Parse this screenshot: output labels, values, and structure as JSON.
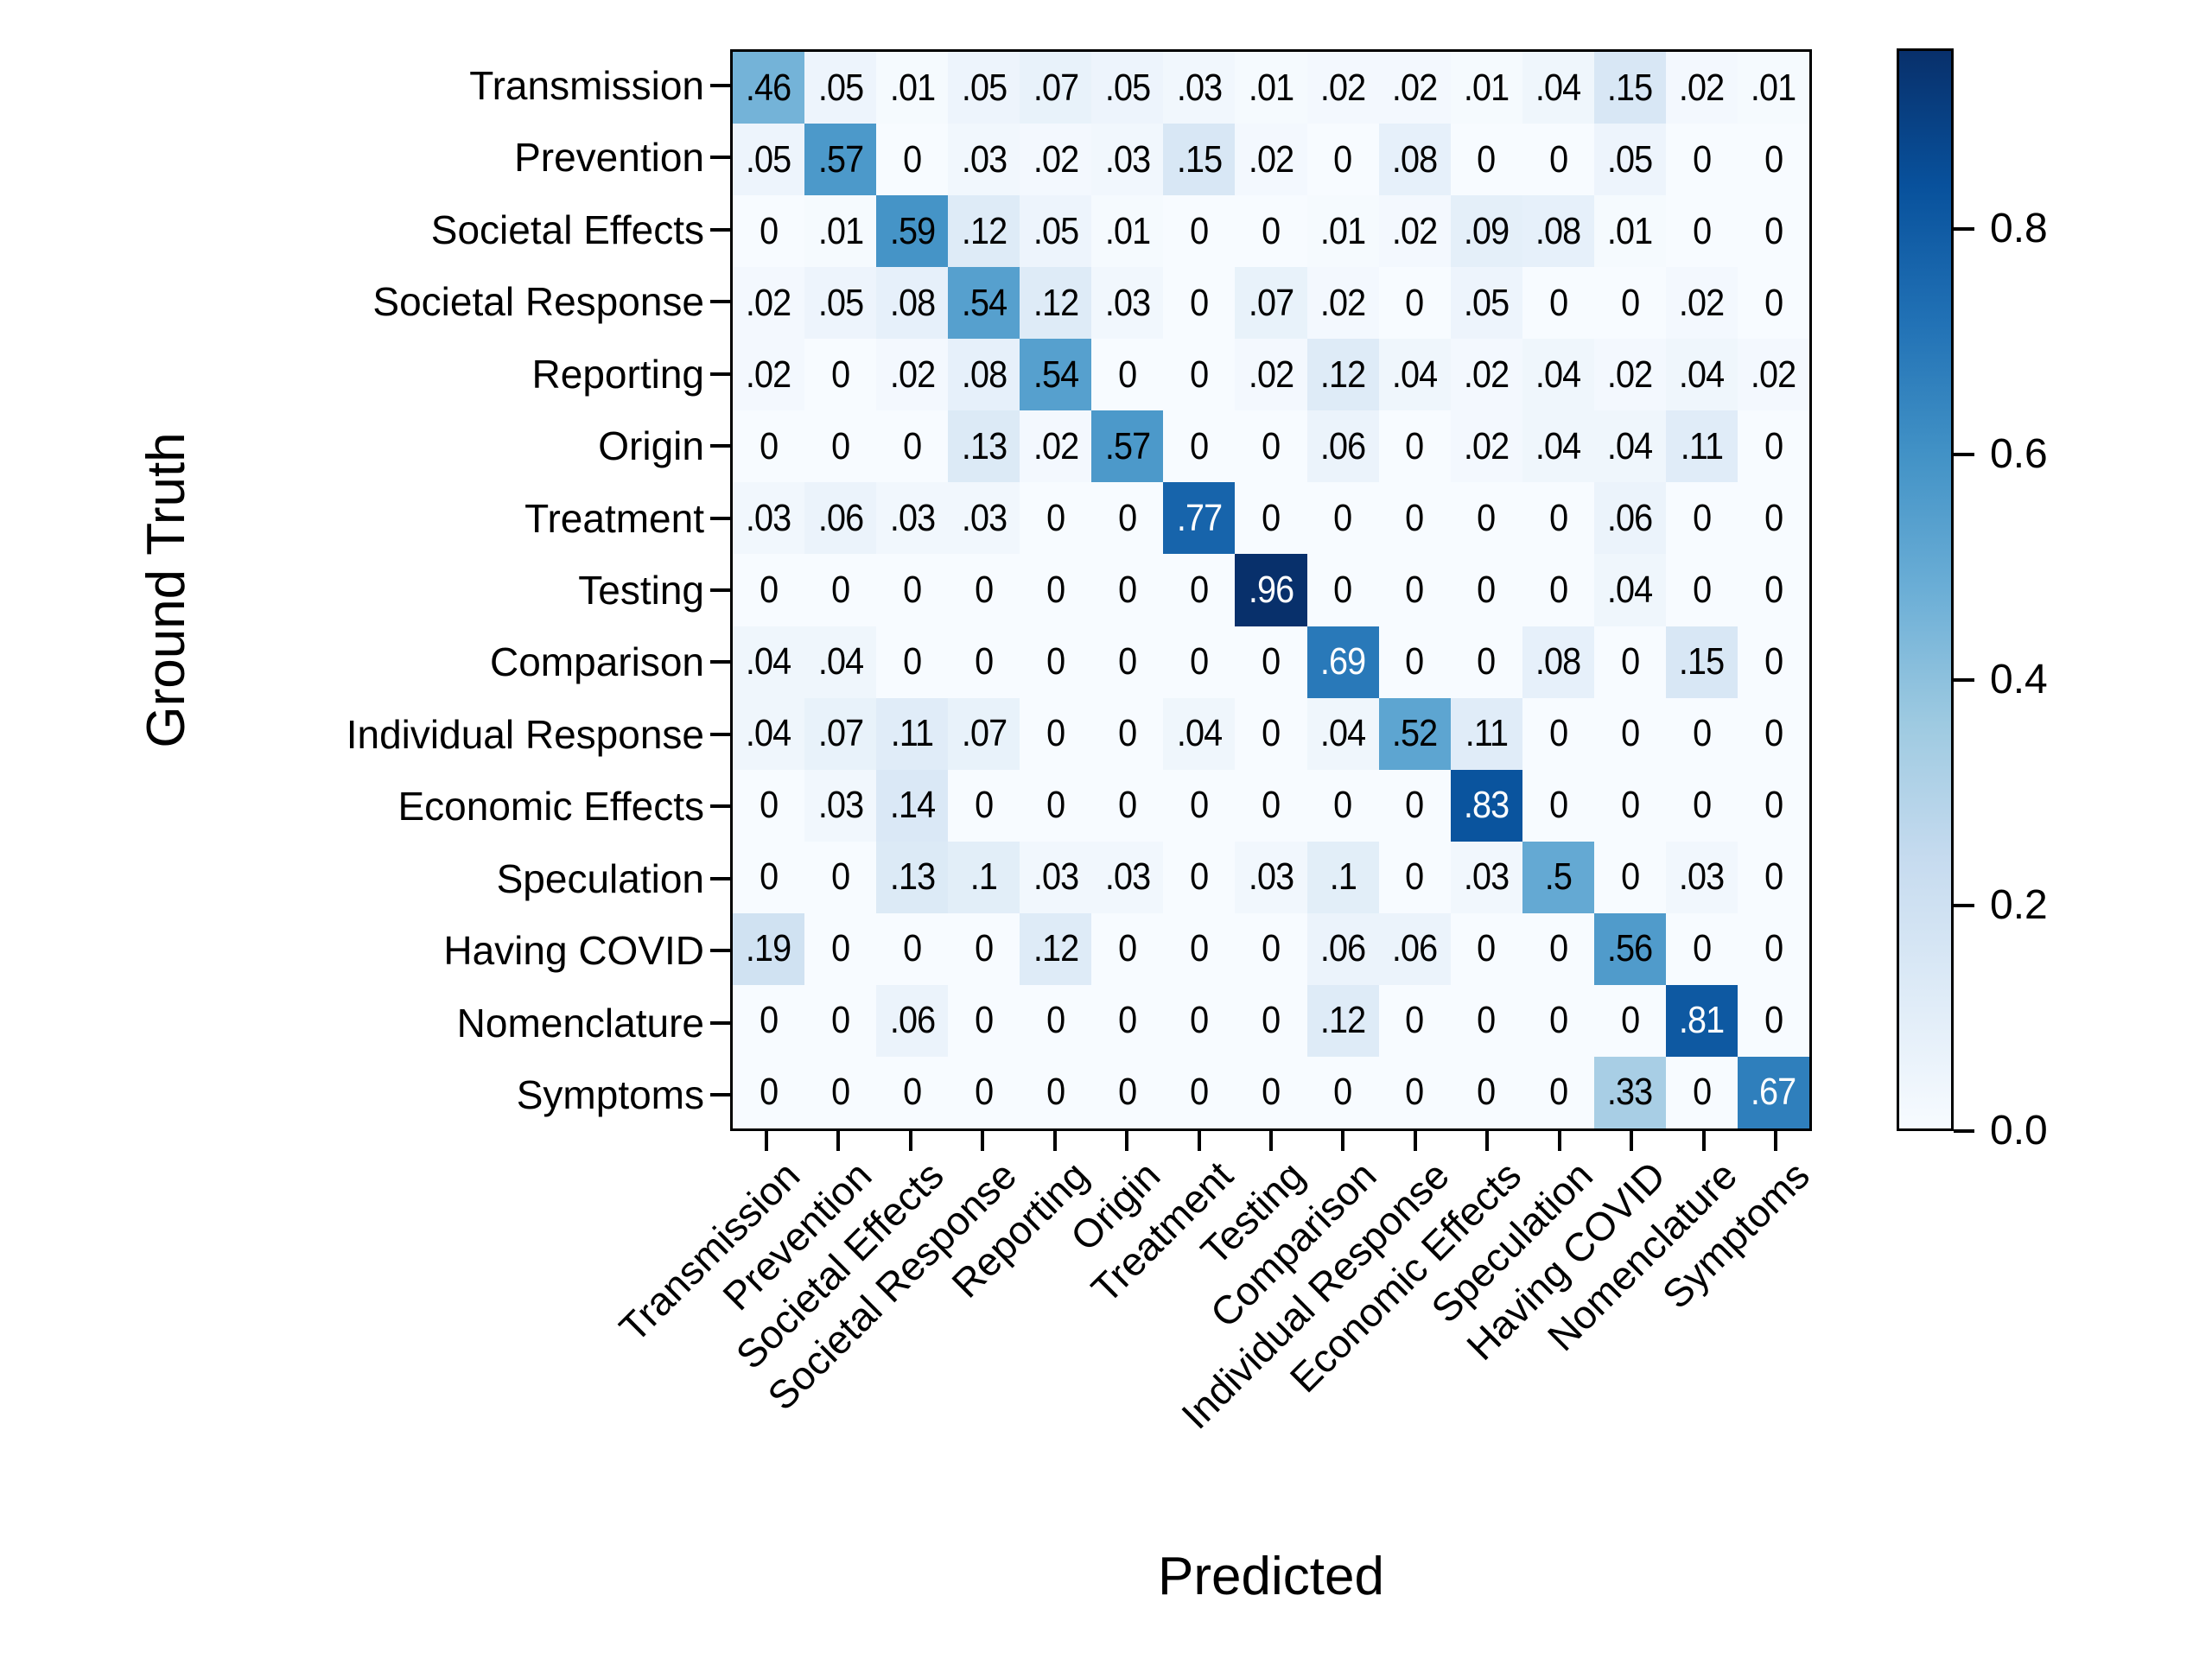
{
  "chart_data": {
    "type": "heatmap",
    "xlabel": "Predicted",
    "ylabel": "Ground Truth",
    "categories": [
      "Transmission",
      "Prevention",
      "Societal Effects",
      "Societal Response",
      "Reporting",
      "Origin",
      "Treatment",
      "Testing",
      "Comparison",
      "Individual Response",
      "Economic Effects",
      "Speculation",
      "Having COVID",
      "Nomenclature",
      "Symptoms"
    ],
    "rows": [
      [
        ".46",
        ".05",
        ".01",
        ".05",
        ".07",
        ".05",
        ".03",
        ".01",
        ".02",
        ".02",
        ".01",
        ".04",
        ".15",
        ".02",
        ".01"
      ],
      [
        ".05",
        ".57",
        "0",
        ".03",
        ".02",
        ".03",
        ".15",
        ".02",
        "0",
        ".08",
        "0",
        "0",
        ".05",
        "0",
        "0"
      ],
      [
        "0",
        ".01",
        ".59",
        ".12",
        ".05",
        ".01",
        "0",
        "0",
        ".01",
        ".02",
        ".09",
        ".08",
        ".01",
        "0",
        "0"
      ],
      [
        ".02",
        ".05",
        ".08",
        ".54",
        ".12",
        ".03",
        "0",
        ".07",
        ".02",
        "0",
        ".05",
        "0",
        "0",
        ".02",
        "0"
      ],
      [
        ".02",
        "0",
        ".02",
        ".08",
        ".54",
        "0",
        "0",
        ".02",
        ".12",
        ".04",
        ".02",
        ".04",
        ".02",
        ".04",
        ".02"
      ],
      [
        "0",
        "0",
        "0",
        ".13",
        ".02",
        ".57",
        "0",
        "0",
        ".06",
        "0",
        ".02",
        ".04",
        ".04",
        ".11",
        "0"
      ],
      [
        ".03",
        ".06",
        ".03",
        ".03",
        "0",
        "0",
        ".77",
        "0",
        "0",
        "0",
        "0",
        "0",
        ".06",
        "0",
        "0"
      ],
      [
        "0",
        "0",
        "0",
        "0",
        "0",
        "0",
        "0",
        ".96",
        "0",
        "0",
        "0",
        "0",
        ".04",
        "0",
        "0"
      ],
      [
        ".04",
        ".04",
        "0",
        "0",
        "0",
        "0",
        "0",
        "0",
        ".69",
        "0",
        "0",
        ".08",
        "0",
        ".15",
        "0"
      ],
      [
        ".04",
        ".07",
        ".11",
        ".07",
        "0",
        "0",
        ".04",
        "0",
        ".04",
        ".52",
        ".11",
        "0",
        "0",
        "0",
        "0"
      ],
      [
        "0",
        ".03",
        ".14",
        "0",
        "0",
        "0",
        "0",
        "0",
        "0",
        "0",
        ".83",
        "0",
        "0",
        "0",
        "0"
      ],
      [
        "0",
        "0",
        ".13",
        ".1",
        ".03",
        ".03",
        "0",
        ".03",
        ".1",
        "0",
        ".03",
        ".5",
        "0",
        ".03",
        "0"
      ],
      [
        ".19",
        "0",
        "0",
        "0",
        ".12",
        "0",
        "0",
        "0",
        ".06",
        ".06",
        "0",
        "0",
        ".56",
        "0",
        "0"
      ],
      [
        "0",
        "0",
        ".06",
        "0",
        "0",
        "0",
        "0",
        "0",
        ".12",
        "0",
        "0",
        "0",
        "0",
        ".81",
        "0"
      ],
      [
        "0",
        "0",
        "0",
        "0",
        "0",
        "0",
        "0",
        "0",
        "0",
        "0",
        "0",
        "0",
        ".33",
        "0",
        ".67"
      ]
    ],
    "colormap": "Blues",
    "colormap_anchors": [
      "#f7fbff",
      "#deebf7",
      "#c6dbef",
      "#9ecae1",
      "#6baed6",
      "#4292c6",
      "#2171b5",
      "#08519c",
      "#08306b"
    ],
    "vmin": 0.0,
    "vmax": 0.96,
    "white_text_threshold": 0.6,
    "cell_text_colors": {
      "dark": "#000000",
      "light": "#ffffff"
    },
    "axis_color": "#000000",
    "background_color": "#ffffff",
    "colorbar": {
      "tick_labels": [
        "0.0",
        "0.2",
        "0.4",
        "0.6",
        "0.8"
      ],
      "tick_values": [
        0.0,
        0.2,
        0.4,
        0.6,
        0.8
      ]
    },
    "legend_position": "right-colorbar",
    "grid": false
  }
}
